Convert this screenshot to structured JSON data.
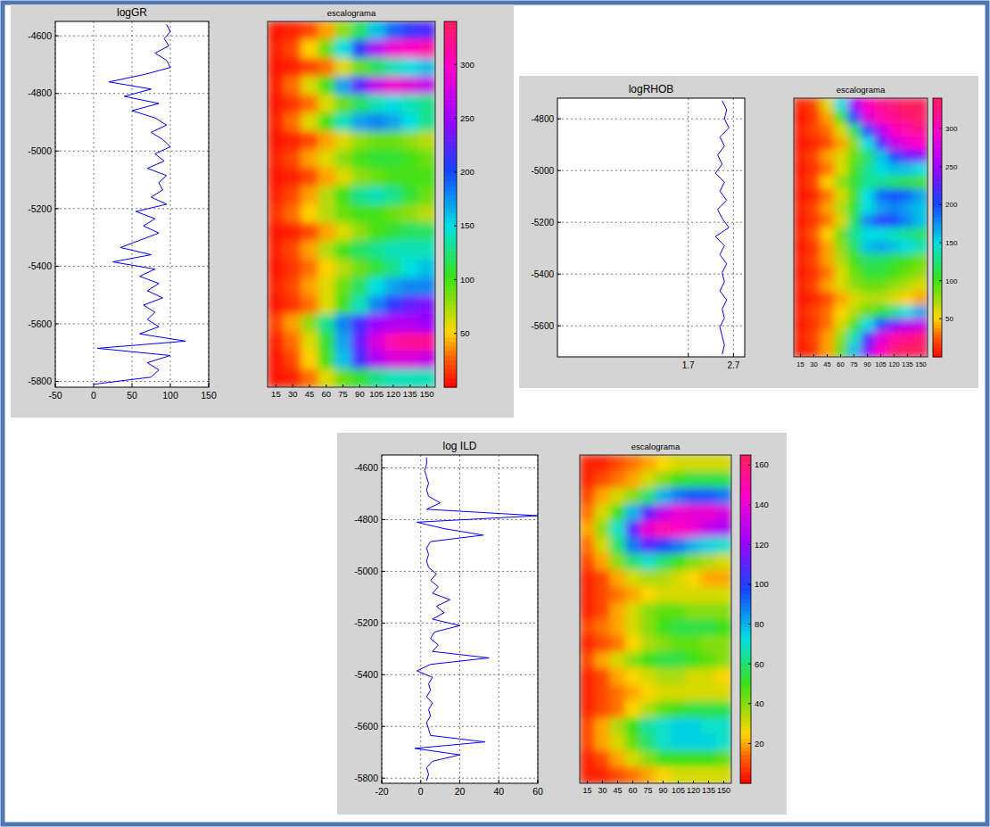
{
  "chart_data": [
    {
      "type": "line",
      "title": "logGR",
      "xlim": [
        -50,
        150
      ],
      "xticks": [
        -50,
        0,
        50,
        100,
        150
      ],
      "ylim": [
        -5820,
        -4550
      ],
      "yticks": [
        -5800,
        -5600,
        -5400,
        -5200,
        -5000,
        -4800,
        -4600
      ],
      "grid": true,
      "x": [
        95,
        100,
        92,
        98,
        80,
        95,
        100,
        65,
        20,
        75,
        40,
        85,
        50,
        80,
        95,
        75,
        90,
        100,
        80,
        92,
        70,
        95,
        85,
        90,
        75,
        95,
        55,
        80,
        65,
        85,
        60,
        35,
        75,
        25,
        80,
        60,
        85,
        70,
        90,
        65,
        80,
        70,
        85,
        60,
        120,
        5,
        100,
        70,
        85,
        75,
        0
      ],
      "series": [
        {
          "color": "#0000ff",
          "values": [
            -4560,
            -4585,
            -4610,
            -4635,
            -4660,
            -4685,
            -4710,
            -4735,
            -4760,
            -4785,
            -4810,
            -4835,
            -4860,
            -4885,
            -4910,
            -4935,
            -4960,
            -4985,
            -5010,
            -5035,
            -5060,
            -5085,
            -5110,
            -5135,
            -5160,
            -5185,
            -5210,
            -5235,
            -5260,
            -5285,
            -5310,
            -5335,
            -5360,
            -5385,
            -5410,
            -5435,
            -5460,
            -5485,
            -5510,
            -5535,
            -5560,
            -5585,
            -5610,
            -5635,
            -5660,
            -5685,
            -5710,
            -5735,
            -5760,
            -5785,
            -5810
          ]
        }
      ],
      "scalogram": {
        "title": "escalograma",
        "scales": [
          15,
          30,
          45,
          60,
          75,
          90,
          105,
          120,
          135,
          150
        ],
        "cells": [
          [
            5,
            10,
            20,
            40,
            80,
            120,
            160,
            190,
            210,
            220
          ],
          [
            10,
            20,
            50,
            90,
            150,
            210,
            260,
            290,
            300,
            310
          ],
          [
            5,
            10,
            20,
            30,
            60,
            90,
            120,
            140,
            150,
            160
          ],
          [
            10,
            30,
            60,
            100,
            170,
            230,
            270,
            290,
            280,
            270
          ],
          [
            5,
            15,
            30,
            60,
            90,
            120,
            140,
            150,
            140,
            130
          ],
          [
            10,
            30,
            60,
            100,
            140,
            170,
            180,
            170,
            150,
            130
          ],
          [
            5,
            10,
            20,
            40,
            60,
            80,
            90,
            90,
            80,
            70
          ],
          [
            10,
            20,
            40,
            60,
            80,
            100,
            110,
            110,
            100,
            90
          ],
          [
            5,
            10,
            20,
            40,
            60,
            80,
            90,
            100,
            100,
            100
          ],
          [
            10,
            20,
            40,
            70,
            100,
            130,
            140,
            130,
            110,
            90
          ],
          [
            15,
            30,
            50,
            70,
            90,
            100,
            100,
            90,
            80,
            70
          ],
          [
            5,
            10,
            20,
            40,
            60,
            80,
            100,
            110,
            120,
            120
          ],
          [
            10,
            20,
            40,
            70,
            100,
            120,
            130,
            140,
            140,
            140
          ],
          [
            5,
            15,
            30,
            50,
            70,
            90,
            110,
            130,
            150,
            160
          ],
          [
            10,
            20,
            40,
            60,
            90,
            120,
            150,
            170,
            180,
            180
          ],
          [
            5,
            15,
            30,
            60,
            100,
            140,
            180,
            210,
            230,
            240
          ],
          [
            20,
            40,
            80,
            130,
            180,
            220,
            250,
            260,
            260,
            250
          ],
          [
            10,
            30,
            60,
            110,
            170,
            230,
            280,
            310,
            320,
            320
          ],
          [
            5,
            20,
            50,
            100,
            160,
            220,
            260,
            280,
            280,
            270
          ],
          [
            5,
            10,
            30,
            60,
            90,
            110,
            130,
            140,
            140,
            140
          ]
        ],
        "colorbar": {
          "range": [
            0,
            340
          ],
          "ticks": [
            50,
            100,
            150,
            200,
            250,
            300
          ]
        }
      }
    },
    {
      "type": "line",
      "title": "logRHOB",
      "xlim": [
        -1.2,
        2.95
      ],
      "xticks": [
        1.7,
        2.7
      ],
      "ylim": [
        -5720,
        -4720
      ],
      "yticks": [
        -5600,
        -5400,
        -5200,
        -5000,
        -4800
      ],
      "grid": true,
      "x": [
        2.45,
        2.55,
        2.5,
        2.6,
        2.4,
        2.5,
        2.35,
        2.45,
        2.3,
        2.5,
        2.4,
        2.55,
        2.35,
        2.45,
        2.6,
        2.3,
        2.5,
        2.4,
        2.55,
        2.45,
        2.5,
        2.4,
        2.55,
        2.45,
        2.5,
        2.4,
        2.45,
        2.5,
        2.45
      ],
      "series": [
        {
          "color": "#0000ff",
          "values": [
            -4730,
            -4765,
            -4800,
            -4835,
            -4870,
            -4905,
            -4940,
            -4975,
            -5010,
            -5045,
            -5080,
            -5115,
            -5150,
            -5185,
            -5220,
            -5255,
            -5290,
            -5325,
            -5360,
            -5395,
            -5430,
            -5465,
            -5500,
            -5535,
            -5570,
            -5605,
            -5640,
            -5675,
            -5710
          ]
        }
      ],
      "scalogram": {
        "title": "escalograma",
        "scales": [
          15,
          30,
          45,
          60,
          75,
          90,
          105,
          120,
          135,
          150
        ],
        "cells": [
          [
            10,
            20,
            60,
            150,
            250,
            300,
            320,
            330,
            340,
            340
          ],
          [
            5,
            15,
            40,
            100,
            200,
            280,
            310,
            320,
            330,
            335
          ],
          [
            10,
            20,
            30,
            60,
            120,
            200,
            260,
            300,
            310,
            320
          ],
          [
            5,
            10,
            20,
            40,
            80,
            150,
            220,
            270,
            290,
            300
          ],
          [
            10,
            20,
            40,
            60,
            90,
            120,
            160,
            200,
            230,
            240
          ],
          [
            5,
            15,
            30,
            60,
            100,
            130,
            150,
            160,
            160,
            150
          ],
          [
            10,
            20,
            50,
            80,
            110,
            130,
            130,
            120,
            110,
            100
          ],
          [
            5,
            10,
            30,
            60,
            100,
            150,
            190,
            200,
            190,
            170
          ],
          [
            10,
            20,
            40,
            70,
            110,
            150,
            170,
            180,
            170,
            160
          ],
          [
            5,
            15,
            30,
            60,
            120,
            180,
            210,
            200,
            180,
            160
          ],
          [
            10,
            25,
            50,
            90,
            130,
            150,
            150,
            140,
            130,
            120
          ],
          [
            5,
            15,
            40,
            80,
            120,
            160,
            170,
            160,
            150,
            140
          ],
          [
            10,
            20,
            40,
            70,
            100,
            120,
            120,
            110,
            100,
            90
          ],
          [
            5,
            15,
            30,
            60,
            90,
            110,
            110,
            100,
            90,
            80
          ],
          [
            10,
            20,
            40,
            60,
            80,
            90,
            90,
            80,
            70,
            60
          ],
          [
            5,
            10,
            20,
            40,
            60,
            70,
            70,
            60,
            50,
            40
          ],
          [
            10,
            20,
            30,
            50,
            70,
            90,
            110,
            130,
            150,
            170
          ],
          [
            5,
            15,
            30,
            60,
            100,
            150,
            200,
            240,
            260,
            270
          ],
          [
            10,
            20,
            40,
            80,
            140,
            220,
            280,
            310,
            320,
            330
          ],
          [
            5,
            15,
            40,
            90,
            160,
            240,
            300,
            330,
            340,
            340
          ]
        ],
        "colorbar": {
          "range": [
            0,
            340
          ],
          "ticks": [
            50,
            100,
            150,
            200,
            250,
            300
          ]
        }
      }
    },
    {
      "type": "line",
      "title": "log ILD",
      "xlim": [
        -20,
        60
      ],
      "xticks": [
        -20,
        0,
        20,
        40,
        60
      ],
      "ylim": [
        -5820,
        -4550
      ],
      "yticks": [
        -5800,
        -5600,
        -5400,
        -5200,
        -5000,
        -4800,
        -4600
      ],
      "grid": true,
      "x": [
        3,
        3,
        2,
        3,
        4,
        3,
        4,
        10,
        3,
        60,
        -2,
        12,
        32,
        5,
        3,
        4,
        3,
        4,
        8,
        5,
        9,
        6,
        15,
        8,
        12,
        6,
        20,
        7,
        5,
        9,
        6,
        35,
        5,
        -2,
        6,
        4,
        5,
        3,
        6,
        4,
        5,
        3,
        4,
        5,
        33,
        -3,
        20,
        6,
        3,
        4,
        3
      ],
      "series": [
        {
          "color": "#0000ff",
          "values": [
            -4560,
            -4585,
            -4610,
            -4635,
            -4660,
            -4685,
            -4710,
            -4735,
            -4760,
            -4785,
            -4810,
            -4835,
            -4860,
            -4885,
            -4910,
            -4935,
            -4960,
            -4985,
            -5010,
            -5035,
            -5060,
            -5085,
            -5110,
            -5135,
            -5160,
            -5185,
            -5210,
            -5235,
            -5260,
            -5285,
            -5310,
            -5335,
            -5360,
            -5385,
            -5410,
            -5435,
            -5460,
            -5485,
            -5510,
            -5535,
            -5560,
            -5585,
            -5610,
            -5635,
            -5660,
            -5685,
            -5710,
            -5735,
            -5760,
            -5785,
            -5810
          ]
        }
      ],
      "scalogram": {
        "title": "escalograma",
        "scales": [
          15,
          30,
          45,
          60,
          75,
          90,
          105,
          120,
          135,
          150
        ],
        "cells": [
          [
            5,
            5,
            10,
            15,
            20,
            25,
            30,
            30,
            30,
            30
          ],
          [
            5,
            10,
            15,
            20,
            30,
            40,
            50,
            55,
            55,
            55
          ],
          [
            10,
            20,
            30,
            40,
            60,
            80,
            90,
            95,
            95,
            90
          ],
          [
            15,
            30,
            50,
            80,
            110,
            130,
            140,
            140,
            140,
            135
          ],
          [
            20,
            40,
            70,
            110,
            140,
            150,
            145,
            140,
            130,
            125
          ],
          [
            15,
            30,
            60,
            90,
            110,
            100,
            90,
            80,
            75,
            70
          ],
          [
            10,
            20,
            40,
            60,
            70,
            60,
            50,
            40,
            35,
            30
          ],
          [
            5,
            10,
            20,
            30,
            35,
            35,
            30,
            25,
            20,
            20
          ],
          [
            5,
            10,
            15,
            20,
            25,
            30,
            30,
            30,
            30,
            30
          ],
          [
            5,
            10,
            20,
            30,
            40,
            45,
            45,
            40,
            40,
            40
          ],
          [
            10,
            15,
            20,
            30,
            40,
            50,
            55,
            55,
            55,
            50
          ],
          [
            5,
            10,
            15,
            25,
            35,
            40,
            45,
            45,
            40,
            40
          ],
          [
            10,
            20,
            30,
            40,
            50,
            55,
            55,
            50,
            45,
            40
          ],
          [
            5,
            10,
            20,
            25,
            30,
            35,
            35,
            30,
            30,
            25
          ],
          [
            5,
            10,
            15,
            20,
            25,
            30,
            30,
            30,
            30,
            30
          ],
          [
            5,
            10,
            15,
            25,
            35,
            45,
            50,
            55,
            55,
            55
          ],
          [
            10,
            20,
            35,
            50,
            65,
            70,
            75,
            75,
            70,
            70
          ],
          [
            10,
            20,
            30,
            45,
            60,
            70,
            75,
            75,
            75,
            70
          ],
          [
            5,
            10,
            20,
            30,
            40,
            50,
            50,
            50,
            50,
            45
          ],
          [
            5,
            5,
            10,
            15,
            20,
            25,
            30,
            30,
            30,
            30
          ]
        ],
        "colorbar": {
          "range": [
            0,
            165
          ],
          "ticks": [
            20,
            40,
            60,
            80,
            100,
            120,
            140,
            160
          ]
        }
      }
    }
  ]
}
